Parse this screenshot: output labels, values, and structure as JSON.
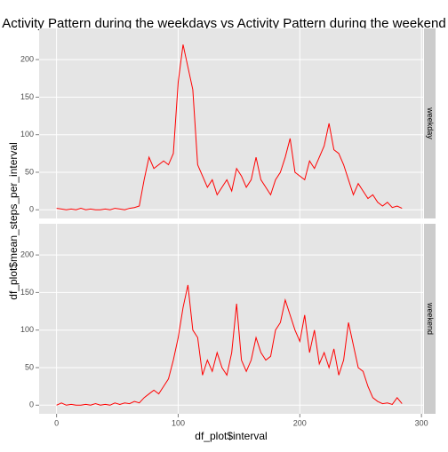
{
  "chart_data": {
    "type": "line",
    "title": "Activity Pattern during the weekdays vs Activity Pattern during the weekend",
    "x_label": "df_plot$interval",
    "y_label": "df_plot$mean_steps_per_interval",
    "x": [
      0,
      4,
      8,
      12,
      16,
      20,
      24,
      28,
      32,
      36,
      40,
      44,
      48,
      52,
      56,
      60,
      64,
      68,
      72,
      76,
      80,
      84,
      88,
      92,
      96,
      100,
      104,
      108,
      112,
      116,
      120,
      124,
      128,
      132,
      136,
      140,
      144,
      148,
      152,
      156,
      160,
      164,
      168,
      172,
      176,
      180,
      184,
      188,
      192,
      196,
      200,
      204,
      208,
      212,
      216,
      220,
      224,
      228,
      232,
      236,
      240,
      244,
      248,
      252,
      256,
      260,
      264,
      268,
      272,
      276,
      280,
      284
    ],
    "series": [
      {
        "name": "weekday",
        "color": "#ff0000",
        "values": [
          2,
          1,
          0,
          1,
          0,
          2,
          0,
          1,
          0,
          0,
          1,
          0,
          2,
          1,
          0,
          2,
          3,
          5,
          40,
          70,
          55,
          60,
          65,
          60,
          75,
          170,
          220,
          190,
          160,
          60,
          45,
          30,
          40,
          20,
          30,
          40,
          25,
          55,
          45,
          30,
          40,
          70,
          40,
          30,
          20,
          40,
          50,
          70,
          95,
          50,
          45,
          40,
          65,
          55,
          70,
          85,
          115,
          80,
          75,
          60,
          40,
          20,
          35,
          25,
          15,
          20,
          10,
          5,
          10,
          3,
          5,
          2
        ]
      },
      {
        "name": "weekend",
        "color": "#ff0000",
        "values": [
          0,
          3,
          0,
          1,
          0,
          0,
          1,
          0,
          2,
          0,
          1,
          0,
          3,
          1,
          3,
          2,
          5,
          3,
          10,
          15,
          20,
          15,
          25,
          35,
          60,
          90,
          130,
          160,
          100,
          90,
          40,
          60,
          45,
          70,
          50,
          40,
          70,
          135,
          60,
          45,
          60,
          90,
          70,
          60,
          65,
          100,
          110,
          140,
          120,
          100,
          85,
          120,
          70,
          100,
          55,
          70,
          50,
          75,
          40,
          60,
          110,
          80,
          50,
          45,
          25,
          10,
          5,
          2,
          3,
          1,
          10,
          2
        ]
      }
    ],
    "xlim": [
      -14.35,
      301.35
    ],
    "xticks": [
      0,
      100,
      200,
      300
    ],
    "ylim": [
      -11.5,
      241.5
    ],
    "yticks": [
      0,
      50,
      100,
      150,
      200
    ],
    "grid": true
  }
}
